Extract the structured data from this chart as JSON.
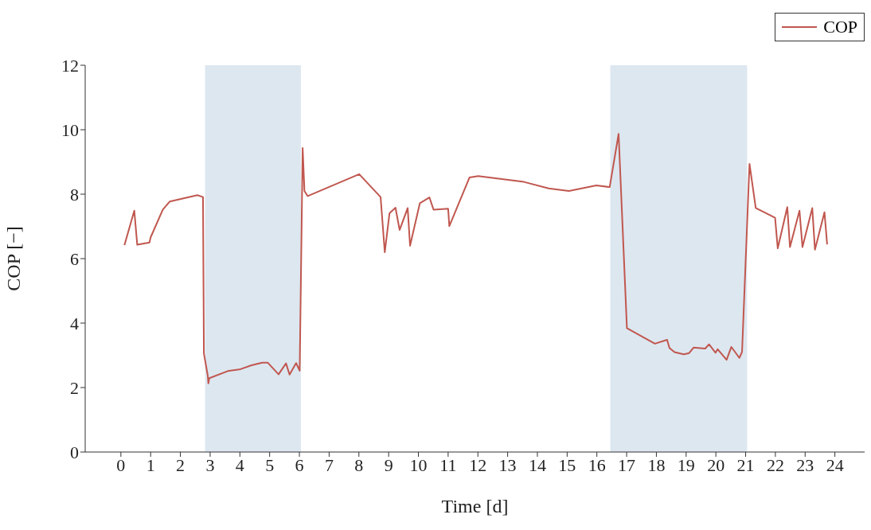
{
  "chart_data": {
    "type": "line",
    "xlabel": "Time [d]",
    "ylabel": "COP [−]",
    "xlim": [
      -1.2,
      25
    ],
    "xticks": [
      0,
      1,
      2,
      3,
      4,
      5,
      6,
      7,
      8,
      9,
      10,
      11,
      12,
      13,
      14,
      15,
      16,
      17,
      18,
      19,
      20,
      21,
      22,
      23,
      24
    ],
    "ylim": [
      0,
      12
    ],
    "yticks": [
      0,
      2,
      4,
      6,
      8,
      10,
      12
    ],
    "grid": false,
    "legend": "top right",
    "marker": "none",
    "line_style": "solid",
    "bands": [
      {
        "axis": "x",
        "from": 2.83,
        "to": 6.05,
        "color": "#dde7f0"
      },
      {
        "axis": "x",
        "from": 16.45,
        "to": 21.05,
        "color": "#dde7f0"
      }
    ],
    "x": [
      0.12,
      0.45,
      0.55,
      0.96,
      1.0,
      1.41,
      1.64,
      2.57,
      2.76,
      2.79,
      2.92,
      2.94,
      2.97,
      3.59,
      4.02,
      4.39,
      4.75,
      4.94,
      5.3,
      5.55,
      5.67,
      5.89,
      6.01,
      6.11,
      6.17,
      6.28,
      8.01,
      8.73,
      8.87,
      9.03,
      9.23,
      9.37,
      9.64,
      9.72,
      10.05,
      10.37,
      10.51,
      11.0,
      11.04,
      11.72,
      12.01,
      13.55,
      14.38,
      15.06,
      15.98,
      16.43,
      16.73,
      17.01,
      17.95,
      18.36,
      18.44,
      18.61,
      18.92,
      19.1,
      19.25,
      19.64,
      19.77,
      19.99,
      20.06,
      20.36,
      20.52,
      20.79,
      20.88,
      21.13,
      21.34,
      21.99,
      22.08,
      22.4,
      22.49,
      22.81,
      22.91,
      23.24,
      23.33,
      23.65,
      23.74
    ],
    "series": [
      {
        "name": "COP",
        "color": "#c0574f",
        "values": [
          6.42,
          7.49,
          6.43,
          6.5,
          6.66,
          7.52,
          7.77,
          7.97,
          7.91,
          3.06,
          2.37,
          2.13,
          2.29,
          2.51,
          2.57,
          2.69,
          2.77,
          2.77,
          2.41,
          2.75,
          2.4,
          2.76,
          2.52,
          9.43,
          8.1,
          7.94,
          8.62,
          7.91,
          6.2,
          7.41,
          7.58,
          6.89,
          7.57,
          6.4,
          7.72,
          7.9,
          7.52,
          7.55,
          7.01,
          8.52,
          8.56,
          8.38,
          8.18,
          8.1,
          8.27,
          8.22,
          9.87,
          3.84,
          3.36,
          3.48,
          3.23,
          3.1,
          3.03,
          3.07,
          3.24,
          3.21,
          3.34,
          3.08,
          3.19,
          2.86,
          3.26,
          2.92,
          3.11,
          8.94,
          7.57,
          7.27,
          6.32,
          7.6,
          6.36,
          7.49,
          6.36,
          7.57,
          6.28,
          7.44,
          6.44
        ]
      }
    ]
  }
}
